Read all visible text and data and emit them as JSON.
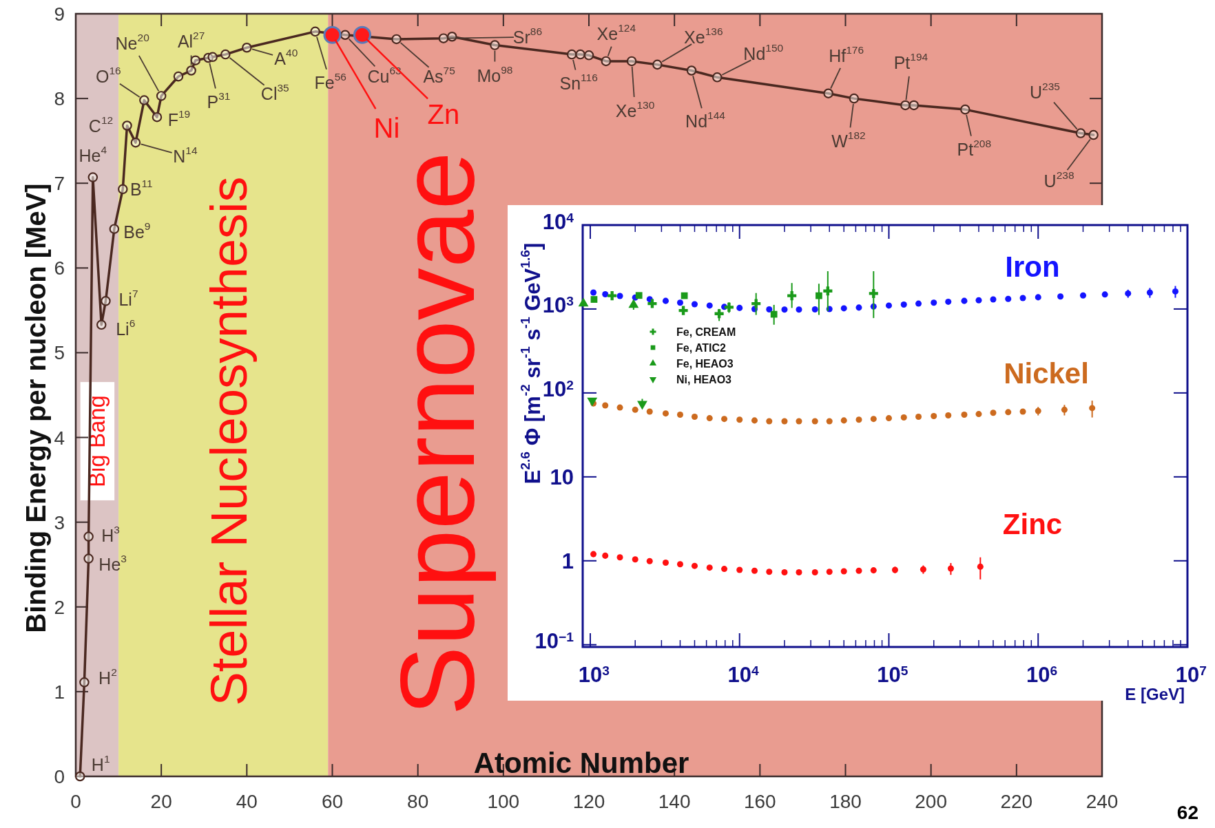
{
  "chart_data": [
    {
      "type": "line",
      "xlabel": "Atomic Number",
      "ylabel": "Binding Energy per nucleon [MeV]",
      "xlim": [
        0,
        240
      ],
      "ylim": [
        0,
        9
      ],
      "xticks": [
        0,
        20,
        40,
        60,
        80,
        100,
        120,
        140,
        160,
        180,
        200,
        220,
        240
      ],
      "yticks": [
        0,
        1,
        2,
        3,
        4,
        5,
        6,
        7,
        8,
        9
      ],
      "grid": false,
      "legend": false,
      "marker": "circle",
      "bands": [
        {
          "axis": "x",
          "from": 0,
          "to": 10,
          "label": "Big Bang",
          "color": "#dcc4c4"
        },
        {
          "axis": "x",
          "from": 10,
          "to": 59,
          "label": "Stellar Nucleosynthesis",
          "color": "#e6e48c"
        },
        {
          "axis": "x",
          "from": 59,
          "to": 240,
          "label": "Supernovae",
          "color": "#e99c90"
        }
      ],
      "series": [
        {
          "color": "#4a2820",
          "x": [
            1,
            2,
            3,
            3,
            4,
            6,
            7,
            9,
            11,
            12,
            14,
            16,
            19,
            20,
            24,
            27,
            28,
            31,
            32,
            35,
            40,
            56,
            63,
            75,
            86,
            88,
            98,
            116,
            118,
            120,
            124,
            130,
            136,
            144,
            150,
            176,
            182,
            194,
            196,
            208,
            235,
            238
          ],
          "values": [
            0,
            1.11,
            2.57,
            2.83,
            7.07,
            5.33,
            5.61,
            6.46,
            6.93,
            7.68,
            7.48,
            7.98,
            7.78,
            8.03,
            8.26,
            8.33,
            8.45,
            8.48,
            8.49,
            8.52,
            8.6,
            8.79,
            8.75,
            8.7,
            8.71,
            8.73,
            8.63,
            8.52,
            8.52,
            8.51,
            8.44,
            8.44,
            8.4,
            8.33,
            8.25,
            8.06,
            8.0,
            7.92,
            7.92,
            7.87,
            7.59,
            7.57
          ]
        },
        {
          "type": "scatter",
          "color": "#ff1a1a",
          "x": [
            60,
            67
          ],
          "values": [
            8.75,
            8.75
          ]
        }
      ],
      "annotations": [
        {
          "text": "H$^{1}$",
          "x": 1,
          "y": 0
        },
        {
          "text": "H$^{2}$",
          "x": 2,
          "y": 1.11
        },
        {
          "text": "H$^{3}$",
          "x": 3,
          "y": 2.83
        },
        {
          "text": "He$^{3}$",
          "x": 3,
          "y": 2.57
        },
        {
          "text": "He$^{4}$",
          "x": 4,
          "y": 7.07
        },
        {
          "text": "Li$^{6}$",
          "x": 6,
          "y": 5.33
        },
        {
          "text": "Li$^{7}$",
          "x": 7,
          "y": 5.61
        },
        {
          "text": "Be$^{9}$",
          "x": 9,
          "y": 6.46
        },
        {
          "text": "B$^{11}$",
          "x": 11,
          "y": 6.93
        },
        {
          "text": "C$^{12}$",
          "x": 12,
          "y": 7.68
        },
        {
          "text": "N$^{14}$",
          "x": 14,
          "y": 7.48
        },
        {
          "text": "O$^{16}$",
          "x": 16,
          "y": 7.98
        },
        {
          "text": "F$^{19}$",
          "x": 19,
          "y": 7.78
        },
        {
          "text": "Ne$^{20}$",
          "x": 20,
          "y": 8.03
        },
        {
          "text": "Al$^{27}$",
          "x": 27,
          "y": 8.33
        },
        {
          "text": "P$^{31}$",
          "x": 31,
          "y": 8.48
        },
        {
          "text": "Cl$^{35}$",
          "x": 35,
          "y": 8.52
        },
        {
          "text": "A$^{40}$",
          "x": 40,
          "y": 8.6
        },
        {
          "text": "Fe$^{56}$",
          "x": 56,
          "y": 8.79
        },
        {
          "text": "Cu$^{63}$",
          "x": 63,
          "y": 8.75
        },
        {
          "text": "As$^{75}$",
          "x": 75,
          "y": 8.7
        },
        {
          "text": "Sr$^{86}$",
          "x": 86,
          "y": 8.71
        },
        {
          "text": "Mo$^{98}$",
          "x": 98,
          "y": 8.63
        },
        {
          "text": "Sn$^{116}$",
          "x": 116,
          "y": 8.52
        },
        {
          "text": "Xe$^{124}$",
          "x": 124,
          "y": 8.44
        },
        {
          "text": "Xe$^{130}$",
          "x": 130,
          "y": 8.44
        },
        {
          "text": "Xe$^{136}$",
          "x": 136,
          "y": 8.4
        },
        {
          "text": "Nd$^{144}$",
          "x": 144,
          "y": 8.33
        },
        {
          "text": "Nd$^{150}$",
          "x": 150,
          "y": 8.25
        },
        {
          "text": "Hf$^{176}$",
          "x": 176,
          "y": 8.06
        },
        {
          "text": "W$^{182}$",
          "x": 182,
          "y": 8.0
        },
        {
          "text": "Pt$^{194}$",
          "x": 194,
          "y": 7.92
        },
        {
          "text": "Pt$^{208}$",
          "x": 208,
          "y": 7.87
        },
        {
          "text": "U$^{235}$",
          "x": 235,
          "y": 7.59
        },
        {
          "text": "U$^{238}$",
          "x": 238,
          "y": 7.57
        },
        {
          "text": "Ni",
          "x": 60,
          "y": 8.75
        },
        {
          "text": "Zn",
          "x": 67,
          "y": 8.75
        },
        "62"
      ]
    },
    {
      "type": "scatter",
      "xlabel": "E [GeV]",
      "ylabel": "E$^{2.6}$ Φ [m$^{-2}$ sr$^{-1}$ s$^{-1}$ GeV$^{1.6}$]",
      "log": "xy",
      "xlim": [
        890,
        10000000
      ],
      "ylim": [
        0.094,
        10000
      ],
      "xticks": [
        {
          "value": 1000,
          "label": "10$^{3}$"
        },
        {
          "value": 2000,
          "label": null
        },
        {
          "value": 3000,
          "label": null
        },
        {
          "value": 4000,
          "label": null
        },
        {
          "value": 5000,
          "label": null
        },
        {
          "value": 6000,
          "label": null
        },
        {
          "value": 7000,
          "label": null
        },
        {
          "value": 8000,
          "label": null
        },
        {
          "value": 9000,
          "label": null
        },
        {
          "value": 10000,
          "label": "10$^{4}$"
        },
        {
          "value": 20000,
          "label": null
        },
        {
          "value": 30000,
          "label": null
        },
        {
          "value": 40000,
          "label": null
        },
        {
          "value": 50000,
          "label": null
        },
        {
          "value": 60000,
          "label": null
        },
        {
          "value": 70000,
          "label": null
        },
        {
          "value": 80000,
          "label": null
        },
        {
          "value": 90000,
          "label": null
        },
        {
          "value": 100000,
          "label": "10$^{5}$"
        },
        {
          "value": 200000,
          "label": null
        },
        {
          "value": 300000,
          "label": null
        },
        {
          "value": 400000,
          "label": null
        },
        {
          "value": 500000,
          "label": null
        },
        {
          "value": 600000,
          "label": null
        },
        {
          "value": 700000,
          "label": null
        },
        {
          "value": 800000,
          "label": null
        },
        {
          "value": 900000,
          "label": null
        },
        {
          "value": 1000000,
          "label": "10$^{6}$"
        },
        {
          "value": 2000000,
          "label": null
        },
        {
          "value": 3000000,
          "label": null
        },
        {
          "value": 4000000,
          "label": null
        },
        {
          "value": 5000000,
          "label": null
        },
        {
          "value": 6000000,
          "label": null
        },
        {
          "value": 7000000,
          "label": null
        },
        {
          "value": 8000000,
          "label": null
        },
        {
          "value": 9000000,
          "label": null
        },
        {
          "value": 10000000,
          "label": "10$^{7}$"
        }
      ],
      "yticks": [
        {
          "value": 0.1,
          "label": "10$^{−1}$"
        },
        1,
        10,
        {
          "value": 100,
          "label": "10$^{2}$"
        },
        {
          "value": 1000,
          "label": "10$^{3}$"
        },
        {
          "value": 10000,
          "label": "10$^{4}$"
        }
      ],
      "grid": false,
      "legend": "top left",
      "marker": "circle",
      "series": [
        {
          "name": "Iron",
          "color": "#1414ff",
          "x": [
            1050,
            1260,
            1580,
            2000,
            2500,
            3200,
            4000,
            5000,
            6300,
            7900,
            10000,
            12600,
            15800,
            20000,
            25000,
            32000,
            40000,
            50000,
            63000,
            79000,
            100000,
            126000,
            158000,
            200000,
            250000,
            320000,
            400000,
            500000,
            630000,
            790000,
            1000000,
            1410000,
            2000000,
            2800000,
            4000000,
            5600000,
            8300000
          ],
          "values": [
            1570,
            1500,
            1430,
            1370,
            1310,
            1250,
            1190,
            1140,
            1100,
            1060,
            1030,
            1000,
            990,
            985,
            985,
            990,
            1000,
            1020,
            1040,
            1070,
            1100,
            1130,
            1160,
            1190,
            1220,
            1250,
            1270,
            1300,
            1320,
            1350,
            1380,
            1410,
            1450,
            1490,
            1530,
            1570,
            1620
          ],
          "errors": [
            null,
            null,
            null,
            null,
            null,
            null,
            null,
            null,
            null,
            null,
            null,
            null,
            null,
            null,
            null,
            null,
            null,
            null,
            null,
            null,
            null,
            null,
            null,
            null,
            null,
            null,
            null,
            null,
            null,
            null,
            null,
            null,
            null,
            null,
            170,
            210,
            260
          ]
        },
        {
          "name": "Nickel",
          "color": "#cc6a1e",
          "x": [
            1050,
            1260,
            1580,
            2000,
            2500,
            3200,
            4000,
            5000,
            6300,
            7900,
            10000,
            12600,
            15800,
            20000,
            25000,
            32000,
            40000,
            50000,
            63000,
            79000,
            100000,
            126000,
            158000,
            200000,
            250000,
            320000,
            400000,
            500000,
            630000,
            790000,
            1000000,
            1500000,
            2300000
          ],
          "values": [
            75,
            71,
            67,
            63,
            60,
            57,
            55,
            52,
            50,
            49,
            48,
            47,
            46,
            46,
            46,
            46,
            46,
            47,
            48,
            49,
            50,
            51,
            52,
            53,
            54,
            55,
            56,
            58,
            59,
            60,
            61,
            63,
            66
          ],
          "errors": [
            null,
            null,
            null,
            null,
            null,
            null,
            null,
            null,
            null,
            null,
            null,
            null,
            null,
            null,
            null,
            null,
            null,
            null,
            null,
            null,
            null,
            null,
            null,
            null,
            null,
            null,
            null,
            null,
            null,
            null,
            7,
            9,
            15
          ]
        },
        {
          "name": "Zinc",
          "color": "#ff1010",
          "x": [
            1050,
            1260,
            1580,
            2000,
            2500,
            3200,
            4000,
            5000,
            6300,
            7900,
            10000,
            12600,
            15800,
            20000,
            25000,
            32000,
            40000,
            50000,
            63000,
            79000,
            110000,
            170000,
            260000,
            410000
          ],
          "values": [
            1.2,
            1.15,
            1.1,
            1.04,
            0.99,
            0.95,
            0.91,
            0.87,
            0.83,
            0.8,
            0.78,
            0.76,
            0.74,
            0.73,
            0.73,
            0.73,
            0.74,
            0.75,
            0.76,
            0.77,
            0.78,
            0.79,
            0.81,
            0.85
          ],
          "errors": [
            null,
            null,
            null,
            null,
            null,
            null,
            null,
            null,
            null,
            null,
            null,
            null,
            null,
            null,
            null,
            null,
            null,
            null,
            null,
            null,
            0.07,
            0.09,
            0.13,
            0.25
          ]
        },
        {
          "name": "Fe, CREAM",
          "color": "#1a9a1a",
          "marker": "cross",
          "x": [
            1400,
            2600,
            4200,
            7300,
            8500,
            12900,
            22400,
            39000,
            79000
          ],
          "values": [
            1440,
            1160,
            960,
            880,
            1050,
            1160,
            1440,
            1640,
            1530
          ],
          "errors": [
            [
              1300,
              1600
            ],
            [
              1050,
              1280
            ],
            [
              860,
              1070
            ],
            [
              720,
              1000
            ],
            [
              900,
              1200
            ],
            [
              850,
              1550
            ],
            [
              1030,
              2040
            ],
            [
              945,
              2820
            ],
            [
              780,
              2820
            ]
          ]
        },
        {
          "name": "Fe, ATIC2",
          "color": "#1a9a1a",
          "marker": "square",
          "x": [
            1060,
            2120,
            4270,
            17000,
            34000
          ],
          "values": [
            1300,
            1450,
            1440,
            865,
            1440
          ],
          "errors": [
            null,
            null,
            null,
            [
              650,
              1120
            ],
            [
              850,
              2000
            ]
          ]
        },
        {
          "name": "Fe, HEAO3",
          "color": "#1a9a1a",
          "marker": "triangle",
          "x": [
            900,
            1950
          ],
          "values": [
            1160,
            1120
          ],
          "errors": [
            null,
            [
              980,
              1280
            ]
          ]
        },
        {
          "name": "Ni, HEAO3",
          "color": "#1a9a1a",
          "marker": "triangle-down",
          "x": [
            1030,
            2230
          ],
          "values": [
            81,
            74
          ],
          "errors": [
            null,
            [
              66,
              85
            ]
          ]
        }
      ]
    }
  ]
}
